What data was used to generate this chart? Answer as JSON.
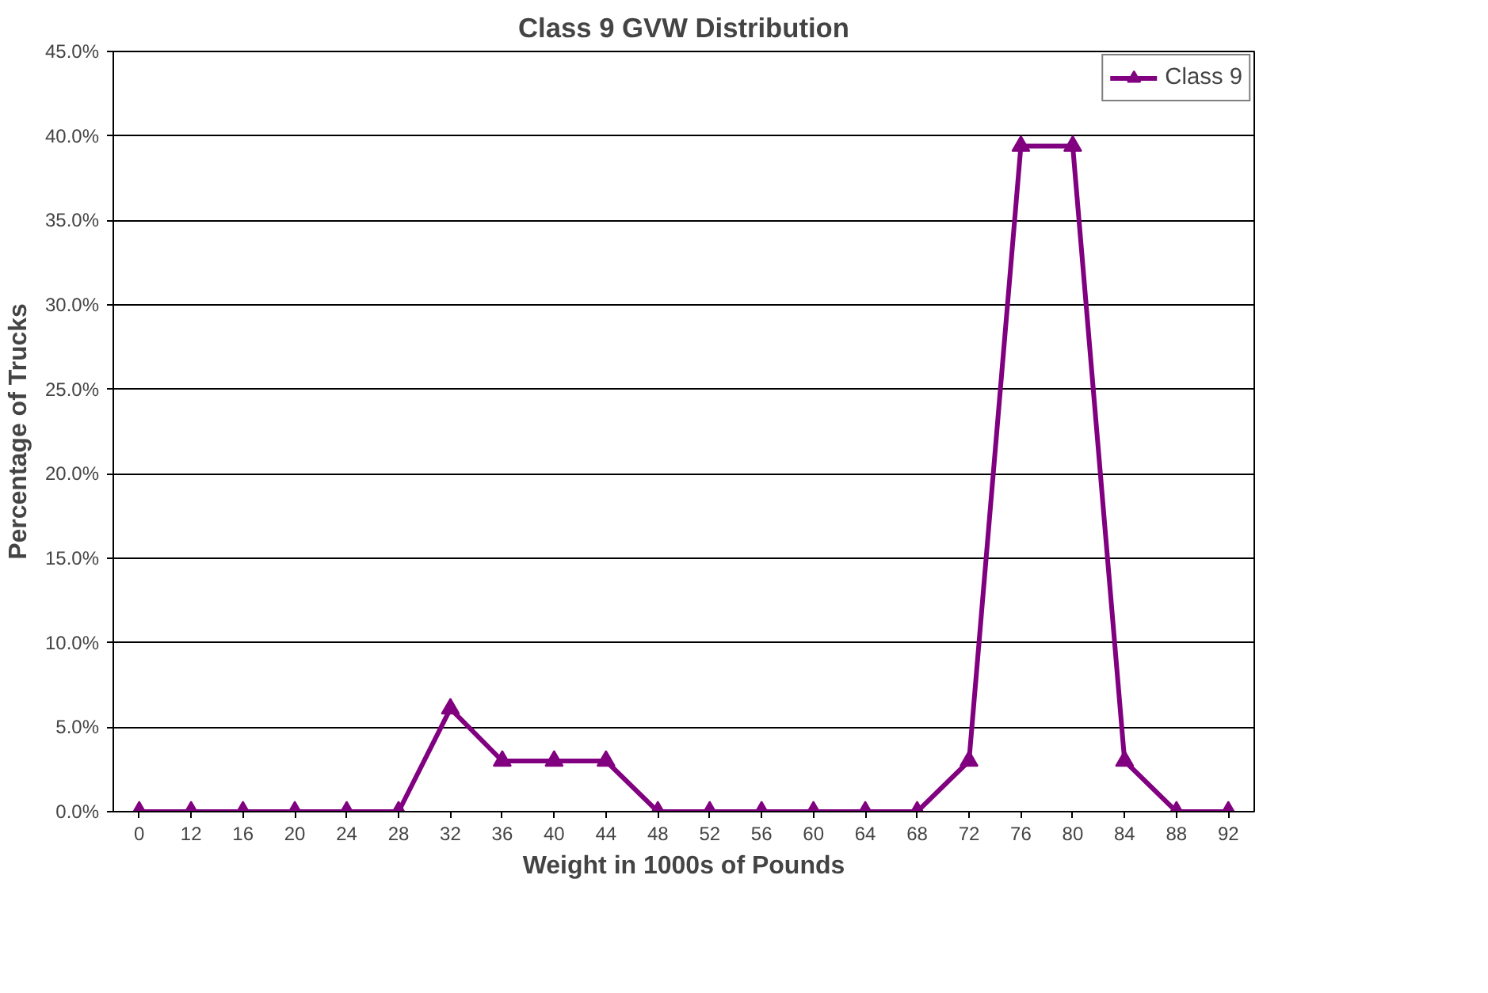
{
  "chart_data": {
    "type": "line",
    "title": "Class 9 GVW Distribution",
    "xlabel": "Weight in 1000s of Pounds",
    "ylabel": "Percentage of Trucks",
    "categories": [
      "0",
      "12",
      "16",
      "20",
      "24",
      "28",
      "32",
      "36",
      "40",
      "44",
      "48",
      "52",
      "56",
      "60",
      "64",
      "68",
      "72",
      "76",
      "80",
      "84",
      "88",
      "92"
    ],
    "series": [
      {
        "name": "Class 9",
        "color": "#800080",
        "values": [
          0,
          0,
          0,
          0,
          0,
          0,
          6.1,
          3.0,
          3.0,
          3.0,
          0,
          0,
          0,
          0,
          0,
          0,
          3.0,
          39.4,
          39.4,
          3.0,
          0,
          0
        ]
      }
    ],
    "ylim": [
      0,
      45
    ],
    "yticks": [
      {
        "value": 0,
        "label": "0.0%"
      },
      {
        "value": 5,
        "label": "5.0%"
      },
      {
        "value": 10,
        "label": "10.0%"
      },
      {
        "value": 15,
        "label": "15.0%"
      },
      {
        "value": 20,
        "label": "20.0%"
      },
      {
        "value": 25,
        "label": "25.0%"
      },
      {
        "value": 30,
        "label": "30.0%"
      },
      {
        "value": 35,
        "label": "35.0%"
      },
      {
        "value": 40,
        "label": "40.0%"
      },
      {
        "value": 45,
        "label": "45.0%"
      }
    ],
    "grid": "y",
    "legend": "top right",
    "marker": "triangle",
    "line_style": "solid"
  }
}
